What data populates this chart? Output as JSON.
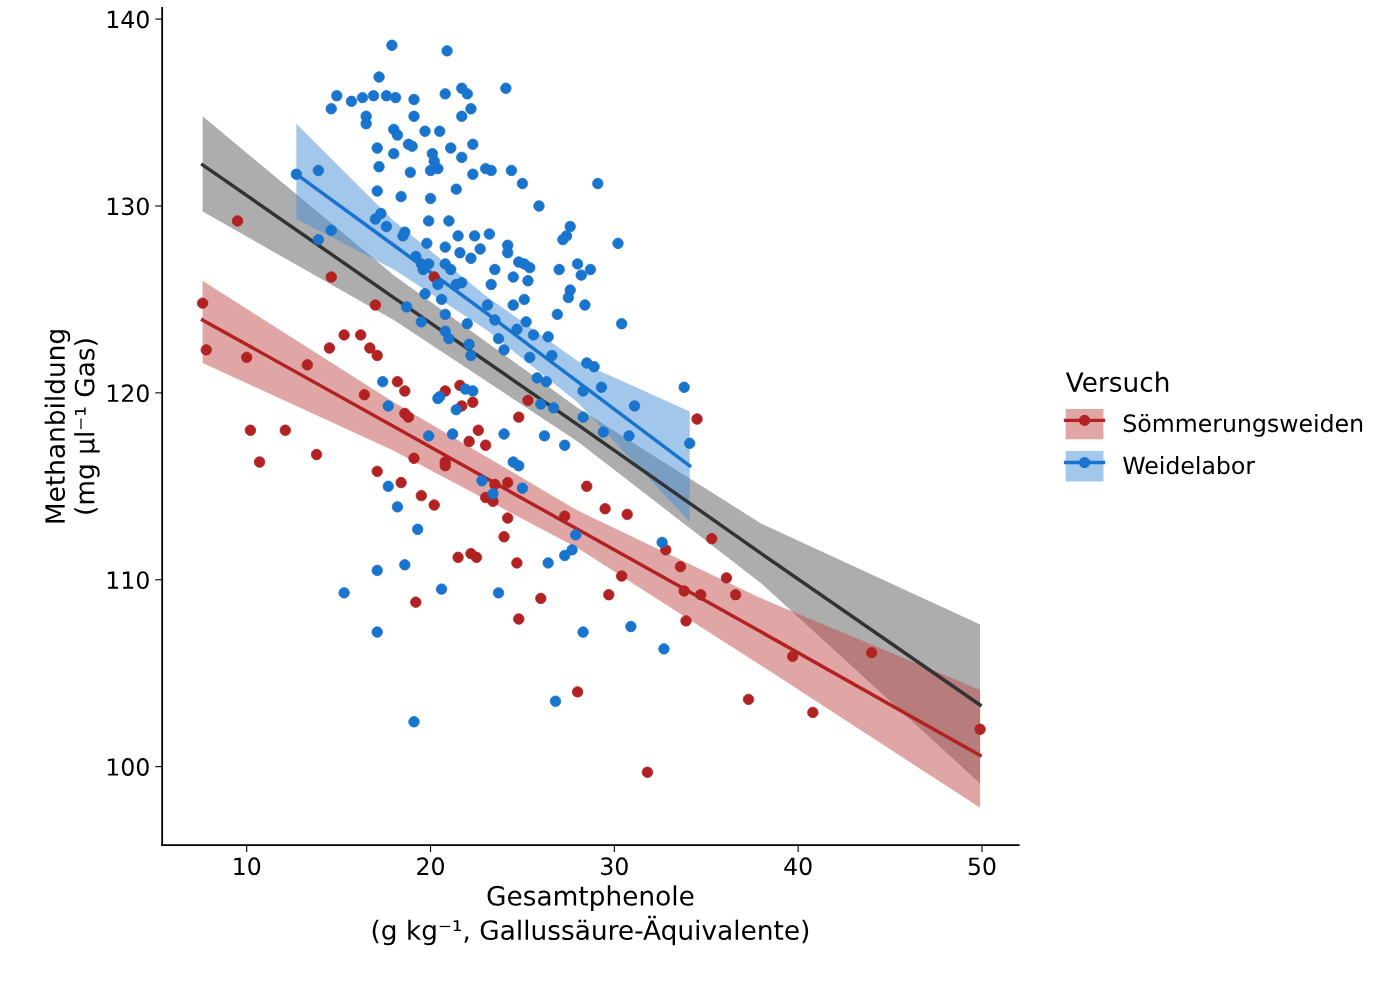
{
  "chart_data": {
    "type": "scatter",
    "xlabel": "Gesamtphenole\n(g kg⁻¹, Gallussäure-Äquivalente)",
    "ylabel": "Methanbildung\n(mg µl⁻¹ Gas)",
    "legend_title": "Versuch",
    "xlim": [
      5.4,
      52.0
    ],
    "ylim": [
      95.8,
      140.6
    ],
    "xticks": [
      10,
      20,
      30,
      40,
      50
    ],
    "yticks": [
      100,
      110,
      120,
      130,
      140
    ],
    "grid": false,
    "legend": "right",
    "line_style": "solid",
    "series": [
      {
        "type": "line",
        "color": "#333333",
        "x": [
          7.6,
          18,
          28,
          38,
          49.9
        ],
        "values": [
          132.2,
          125.1,
          118.3,
          111.4,
          103.3
        ],
        "lower": [
          129.7,
          123.9,
          117.4,
          109.8,
          99.1
        ],
        "upper": [
          134.8,
          126.3,
          119.2,
          113.0,
          107.6
        ]
      },
      {
        "type": "line",
        "color": "#b22222",
        "x": [
          7.6,
          18,
          28,
          38,
          49.9
        ],
        "values": [
          123.9,
          118.2,
          112.7,
          107.2,
          100.6
        ],
        "lower": [
          121.6,
          116.9,
          111.7,
          105.4,
          97.8
        ],
        "upper": [
          126.0,
          119.5,
          113.7,
          109.0,
          104.1
        ]
      },
      {
        "type": "line",
        "color": "#1874cd",
        "x": [
          12.7,
          18,
          23,
          28,
          34.1
        ],
        "values": [
          131.7,
          127.9,
          124.3,
          120.6,
          116.1
        ],
        "lower": [
          129.3,
          126.6,
          123.4,
          119.5,
          113.1
        ],
        "upper": [
          134.4,
          129.2,
          125.2,
          121.7,
          119.0
        ]
      },
      {
        "name": "Sömmerungsweiden",
        "color": "#b22222",
        "x": [
          7.6,
          7.8,
          9.5,
          10.0,
          10.2,
          10.7,
          12.1,
          13.3,
          13.8,
          14.5,
          14.6,
          15.3,
          16.2,
          16.4,
          16.7,
          17.0,
          17.1,
          17.1,
          18.2,
          18.4,
          18.6,
          18.6,
          18.8,
          19.1,
          19.2,
          19.5,
          20.2,
          20.2,
          20.8,
          20.8,
          20.8,
          21.6,
          21.5,
          21.7,
          22.2,
          22.5,
          22.1,
          22.6,
          22.3,
          23.0,
          23.0,
          23.4,
          23.5,
          24.2,
          24.0,
          24.2,
          24.7,
          24.8,
          24.8,
          25.3,
          26.0,
          27.3,
          28.0,
          28.5,
          29.5,
          29.7,
          30.4,
          30.7,
          31.8,
          32.8,
          33.6,
          33.8,
          33.9,
          34.5,
          34.7,
          35.3,
          36.1,
          36.6,
          37.3,
          39.7,
          40.8,
          44.0,
          49.9
        ],
        "values": [
          124.8,
          122.3,
          129.2,
          121.9,
          118.0,
          116.3,
          118.0,
          121.5,
          116.7,
          122.4,
          126.2,
          123.1,
          123.1,
          119.9,
          122.4,
          124.7,
          122.0,
          115.8,
          120.6,
          115.2,
          120.1,
          118.9,
          118.7,
          116.5,
          108.8,
          114.5,
          114.0,
          126.2,
          116.3,
          120.1,
          116.1,
          120.4,
          111.2,
          119.3,
          111.4,
          111.2,
          117.4,
          118.0,
          119.5,
          117.2,
          114.4,
          114.2,
          115.1,
          115.2,
          112.3,
          113.3,
          110.9,
          107.9,
          118.7,
          119.6,
          109.0,
          113.4,
          104.0,
          115.0,
          113.8,
          109.2,
          110.2,
          113.5,
          99.7,
          111.6,
          110.7,
          109.4,
          107.8,
          118.6,
          109.2,
          112.2,
          110.1,
          109.2,
          103.6,
          105.9,
          102.9,
          106.1,
          102.0
        ]
      },
      {
        "name": "Weidelabor",
        "color": "#1874cd",
        "x": [
          12.7,
          13.9,
          13.9,
          14.6,
          14.6,
          14.9,
          15.7,
          16.3,
          16.5,
          16.5,
          16.9,
          17.2,
          17.6,
          17.1,
          17.2,
          17.1,
          17.0,
          17.3,
          17.6,
          18.0,
          18.0,
          18.1,
          18.2,
          18.4,
          18.5,
          18.6,
          18.9,
          19.1,
          19.1,
          18.8,
          17.9,
          20.9,
          19.7,
          20.0,
          20.1,
          20.2,
          20.0,
          19.9,
          19.8,
          19.2,
          19.5,
          19.6,
          19.9,
          19.7,
          19.5,
          18.7,
          19.0,
          20.4,
          20.5,
          20.8,
          21.1,
          21.0,
          21.4,
          21.5,
          21.6,
          21.7,
          21.7,
          22.0,
          22.2,
          22.3,
          21.7,
          22.3,
          20.8,
          20.8,
          21.1,
          21.4,
          21.7,
          20.4,
          20.6,
          20.8,
          20.8,
          21.0,
          22.0,
          22.1,
          22.2,
          22.4,
          22.2,
          22.7,
          23.0,
          23.3,
          23.2,
          23.5,
          23.3,
          23.1,
          23.5,
          23.7,
          24.0,
          24.1,
          24.4,
          24.2,
          24.2,
          24.5,
          24.5,
          24.7,
          24.8,
          25.0,
          25.1,
          25.1,
          25.3,
          25.2,
          25.4,
          25.6,
          25.8,
          25.4,
          25.9,
          26.0,
          26.3,
          26.4,
          26.6,
          26.7,
          26.9,
          27.0,
          27.2,
          27.4,
          27.6,
          27.5,
          27.6,
          28.0,
          28.3,
          28.2,
          28.4,
          28.5,
          28.7,
          28.9,
          29.1,
          29.3,
          30.2,
          30.4,
          31.1,
          30.8,
          29.4,
          28.3,
          26.2,
          27.3,
          15.3,
          17.1,
          17.7,
          17.1,
          18.2,
          18.6,
          19.1,
          19.3,
          19.9,
          20.6,
          20.4,
          20.5,
          21.2,
          21.4,
          21.9,
          22.3,
          22.8,
          23.4,
          23.7,
          24.0,
          24.5,
          24.8,
          25.0,
          26.4,
          26.8,
          27.3,
          27.7,
          27.9,
          28.3,
          30.9,
          32.6,
          32.7,
          33.8,
          34.1,
          17.4,
          17.7
        ],
        "values": [
          131.7,
          131.9,
          128.2,
          128.7,
          135.2,
          135.9,
          135.6,
          135.8,
          134.8,
          134.4,
          135.9,
          136.9,
          135.9,
          133.1,
          132.1,
          130.8,
          129.3,
          129.6,
          128.9,
          132.8,
          134.1,
          135.8,
          133.8,
          130.5,
          128.4,
          128.6,
          131.8,
          135.7,
          134.8,
          133.3,
          138.6,
          138.3,
          134.0,
          131.9,
          132.8,
          132.4,
          130.4,
          129.2,
          128.0,
          127.3,
          126.9,
          126.6,
          126.9,
          125.3,
          123.8,
          124.6,
          133.2,
          132.0,
          134.0,
          136.0,
          133.1,
          129.2,
          130.9,
          128.4,
          127.5,
          134.8,
          136.3,
          136.0,
          135.2,
          133.3,
          132.6,
          131.7,
          127.8,
          126.9,
          126.6,
          125.8,
          125.9,
          125.8,
          125.0,
          124.2,
          123.3,
          122.9,
          123.7,
          122.6,
          122.0,
          128.4,
          127.2,
          127.7,
          132.0,
          131.9,
          128.5,
          126.6,
          125.8,
          124.7,
          123.9,
          122.9,
          122.3,
          136.3,
          131.9,
          127.9,
          127.5,
          126.2,
          124.7,
          123.4,
          127.0,
          131.2,
          126.9,
          125.0,
          126.0,
          123.8,
          121.9,
          123.1,
          120.8,
          126.7,
          130.0,
          119.4,
          120.6,
          123.0,
          122.0,
          119.2,
          124.2,
          126.6,
          128.2,
          128.4,
          125.5,
          125.1,
          128.9,
          126.9,
          120.1,
          126.3,
          124.7,
          121.6,
          126.6,
          121.4,
          131.2,
          120.3,
          128.0,
          123.7,
          119.3,
          117.7,
          117.9,
          118.7,
          117.7,
          117.2,
          109.3,
          110.5,
          115.0,
          107.2,
          113.9,
          110.8,
          102.4,
          112.7,
          117.7,
          109.5,
          119.7,
          119.8,
          117.8,
          119.1,
          120.2,
          120.1,
          115.3,
          114.6,
          109.3,
          117.8,
          116.3,
          116.1,
          114.9,
          110.9,
          103.5,
          111.3,
          111.6,
          112.4,
          107.2,
          107.5,
          112.0,
          106.3,
          120.3,
          117.3,
          120.6,
          119.3
        ]
      }
    ]
  }
}
